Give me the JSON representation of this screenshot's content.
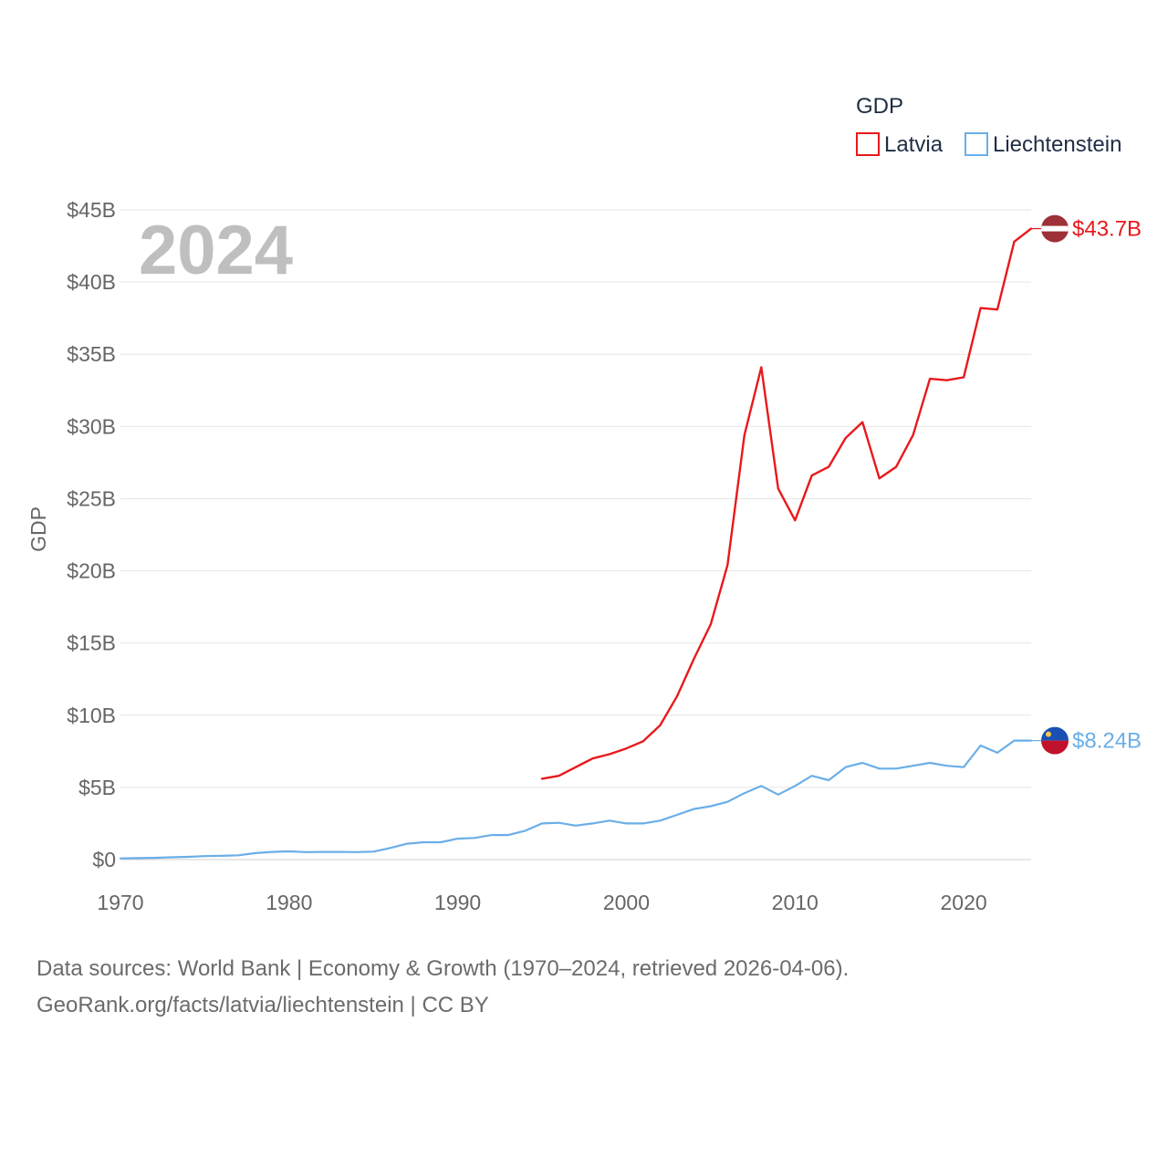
{
  "chart_data": {
    "type": "line",
    "year_label": "2024",
    "legend": {
      "title": "GDP",
      "entries": [
        "Latvia",
        "Liechtenstein"
      ]
    },
    "ylabel": "GDP",
    "xlabel": "",
    "xlim": [
      1970,
      2024
    ],
    "ylim": [
      0,
      45
    ],
    "x_ticks": [
      1970,
      1980,
      1990,
      2000,
      2010,
      2020
    ],
    "y_ticks": [
      {
        "value": 0,
        "label": "$0"
      },
      {
        "value": 5,
        "label": "$5B"
      },
      {
        "value": 10,
        "label": "$10B"
      },
      {
        "value": 15,
        "label": "$15B"
      },
      {
        "value": 20,
        "label": "$20B"
      },
      {
        "value": 25,
        "label": "$25B"
      },
      {
        "value": 30,
        "label": "$30B"
      },
      {
        "value": 35,
        "label": "$35B"
      },
      {
        "value": 40,
        "label": "$40B"
      },
      {
        "value": 45,
        "label": "$45B"
      }
    ],
    "units": "billions USD",
    "series": [
      {
        "name": "Latvia",
        "color": "#e8191c",
        "end_label": "$43.7B",
        "flag": "latvia-flag",
        "x": [
          1995,
          1996,
          1997,
          1998,
          1999,
          2000,
          2001,
          2002,
          2003,
          2004,
          2005,
          2006,
          2007,
          2008,
          2009,
          2010,
          2011,
          2012,
          2013,
          2014,
          2015,
          2016,
          2017,
          2018,
          2019,
          2020,
          2021,
          2022,
          2023,
          2024
        ],
        "values": [
          5.6,
          5.8,
          6.4,
          7.0,
          7.3,
          7.7,
          8.2,
          9.3,
          11.3,
          13.9,
          16.3,
          20.4,
          29.4,
          34.1,
          25.7,
          23.5,
          26.6,
          27.2,
          29.2,
          30.3,
          26.4,
          27.2,
          29.4,
          33.3,
          33.2,
          33.4,
          38.2,
          38.1,
          42.8,
          43.7
        ]
      },
      {
        "name": "Liechtenstein",
        "color": "#6aaee8",
        "end_label": "$8.24B",
        "flag": "liechtenstein-flag",
        "x": [
          1970,
          1971,
          1972,
          1973,
          1974,
          1975,
          1976,
          1977,
          1978,
          1979,
          1980,
          1981,
          1982,
          1983,
          1984,
          1985,
          1986,
          1987,
          1988,
          1989,
          1990,
          1991,
          1992,
          1993,
          1994,
          1995,
          1996,
          1997,
          1998,
          1999,
          2000,
          2001,
          2002,
          2003,
          2004,
          2005,
          2006,
          2007,
          2008,
          2009,
          2010,
          2011,
          2012,
          2013,
          2014,
          2015,
          2016,
          2017,
          2018,
          2019,
          2020,
          2021,
          2022,
          2023,
          2024
        ],
        "values": [
          0.08,
          0.1,
          0.12,
          0.16,
          0.19,
          0.24,
          0.26,
          0.3,
          0.45,
          0.53,
          0.57,
          0.52,
          0.53,
          0.53,
          0.52,
          0.55,
          0.8,
          1.1,
          1.2,
          1.2,
          1.45,
          1.5,
          1.7,
          1.7,
          2.0,
          2.5,
          2.55,
          2.35,
          2.5,
          2.7,
          2.5,
          2.5,
          2.7,
          3.1,
          3.5,
          3.7,
          4.0,
          4.6,
          5.1,
          4.5,
          5.1,
          5.8,
          5.5,
          6.4,
          6.7,
          6.3,
          6.3,
          6.5,
          6.7,
          6.5,
          6.4,
          7.9,
          7.4,
          8.24,
          8.24
        ]
      }
    ]
  },
  "sources": {
    "line1": "Data sources: World Bank | Economy & Growth (1970–2024, retrieved 2026-04-06).",
    "line2": "GeoRank.org/facts/latvia/liechtenstein | CC BY"
  }
}
